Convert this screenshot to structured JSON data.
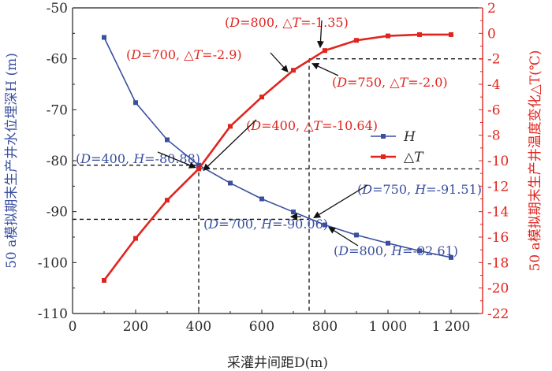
{
  "chart_data": {
    "type": "line",
    "xlabel": "采灌井间距D(m)",
    "ylabel_left": "50 a模拟期末生产井水位埋深H (m)",
    "ylabel_right": "50 a模拟期末生产井温度变化△T(℃)",
    "xlim": [
      0,
      1300
    ],
    "ylim_left": [
      -110,
      -50
    ],
    "ylim_right": [
      -22,
      2
    ],
    "x_ticks": [
      0,
      200,
      400,
      600,
      800,
      1000,
      1200
    ],
    "x_tick_labels": [
      "0",
      "200",
      "400",
      "600",
      "800",
      "1 000",
      "1 200"
    ],
    "y_left_ticks": [
      -50,
      -60,
      -70,
      -80,
      -90,
      -100,
      -110
    ],
    "y_right_ticks": [
      2,
      0,
      -2,
      -4,
      -6,
      -8,
      -10,
      -12,
      -14,
      -16,
      -18,
      -20,
      -22
    ],
    "series": [
      {
        "name": "H",
        "axis": "left",
        "color": "#3a4fa0",
        "x": [
          100,
          200,
          300,
          400,
          500,
          600,
          700,
          800,
          900,
          1000,
          1100,
          1200
        ],
        "values": [
          -55.8,
          -68.6,
          -75.9,
          -80.88,
          -84.4,
          -87.5,
          -90.06,
          -92.61,
          -94.6,
          -96.2,
          -97.7,
          -99.0
        ]
      },
      {
        "name": "△T",
        "axis": "right",
        "color": "#e0251f",
        "x": [
          100,
          200,
          300,
          400,
          500,
          600,
          700,
          800,
          900,
          1000,
          1100,
          1200
        ],
        "values": [
          -19.4,
          -16.1,
          -13.1,
          -10.64,
          -7.3,
          -5.0,
          -2.9,
          -1.35,
          -0.55,
          -0.2,
          -0.1,
          -0.1
        ]
      }
    ],
    "reference_lines": [
      {
        "axis": "left",
        "x": 400,
        "y": -80.88
      },
      {
        "axis": "right",
        "x": 400,
        "y": -10.64
      },
      {
        "axis": "right",
        "x": 750,
        "y": -2.0
      },
      {
        "axis": "left",
        "x": 750,
        "y": -91.51
      }
    ],
    "annotations": [
      {
        "color": "red",
        "italic": "D",
        "rest": "=800, △",
        "italic2": "T",
        "rest2": "=-1.35)"
      },
      {
        "color": "red",
        "italic": "D",
        "rest": "=700, △",
        "italic2": "T",
        "rest2": "=-2.9)"
      },
      {
        "color": "red",
        "italic": "D",
        "rest": "=750, △",
        "italic2": "T",
        "rest2": "=-2.0)"
      },
      {
        "color": "red",
        "italic": "D",
        "rest": "=400, △",
        "italic2": "T",
        "rest2": "=-10.64)"
      },
      {
        "color": "blue",
        "italic": "D",
        "rest": "=400, ",
        "italic2": "H",
        "rest2": "=-80.88)"
      },
      {
        "color": "blue",
        "italic": "D",
        "rest": "=750, ",
        "italic2": "H",
        "rest2": "=-91.51)"
      },
      {
        "color": "blue",
        "italic": "D",
        "rest": "=700, ",
        "italic2": "H",
        "rest2": "=-90.06)"
      },
      {
        "color": "blue",
        "italic": "D",
        "rest": "=800, ",
        "italic2": "H",
        "rest2": "=-92.61)"
      }
    ],
    "legend_placement": "center-right",
    "grid": false
  }
}
